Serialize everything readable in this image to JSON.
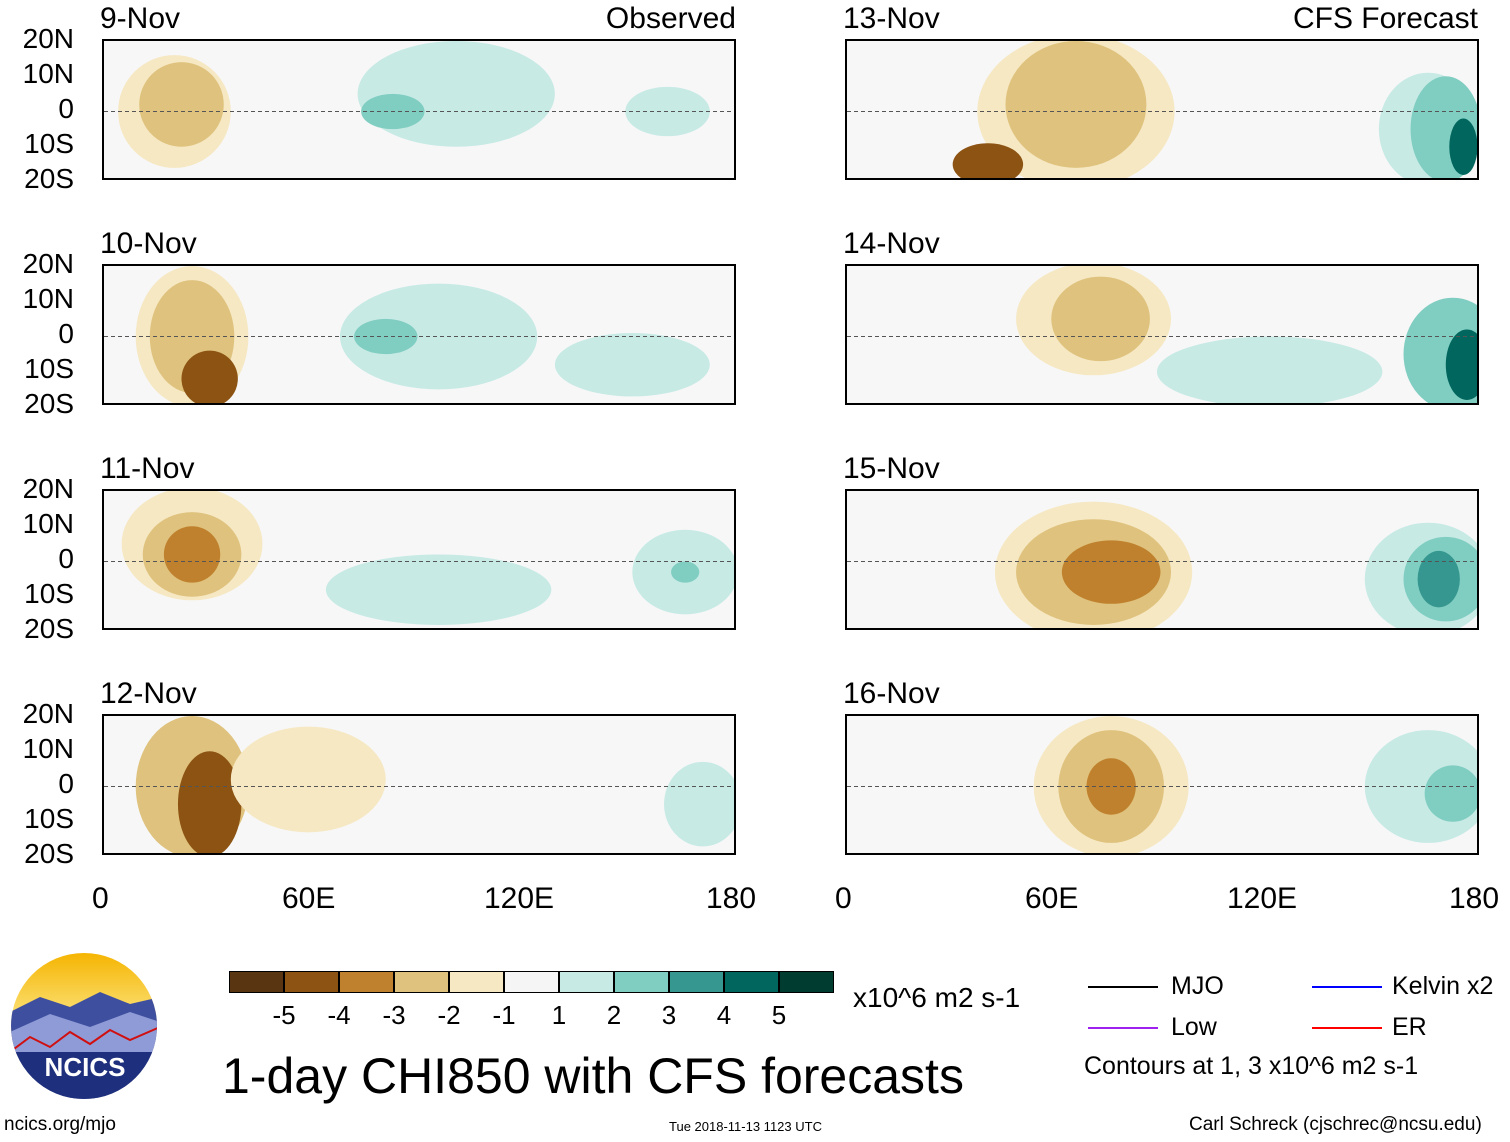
{
  "panels_left_title": "Observed",
  "panels_right_title": "CFS Forecast",
  "panels": [
    {
      "date": "9-Nov"
    },
    {
      "date": "10-Nov"
    },
    {
      "date": "11-Nov"
    },
    {
      "date": "12-Nov"
    },
    {
      "date": "13-Nov"
    },
    {
      "date": "14-Nov"
    },
    {
      "date": "15-Nov"
    },
    {
      "date": "16-Nov"
    }
  ],
  "lat_labels": [
    "20N",
    "10N",
    "0",
    "10S",
    "20S"
  ],
  "lon_labels": [
    "0",
    "60E",
    "120E",
    "180"
  ],
  "colorbar": {
    "colors": [
      "#5a3512",
      "#8c5313",
      "#bf812d",
      "#dfc27d",
      "#f6e8c3",
      "#f5f5f5",
      "#c7eae5",
      "#80cdc1",
      "#35978f",
      "#01665e",
      "#003c30"
    ],
    "labels": [
      "-5",
      "-4",
      "-3",
      "-2",
      "-1",
      "1",
      "2",
      "3",
      "4",
      "5"
    ],
    "units": "x10^6 m2 s-1"
  },
  "title": "1-day CHI850 with CFS forecasts",
  "legend": {
    "items": [
      {
        "label": "MJO",
        "color": "#000000"
      },
      {
        "label": "Kelvin x2",
        "color": "#0000ff"
      },
      {
        "label": "Low",
        "color": "#a020f0"
      },
      {
        "label": "ER",
        "color": "#ff0000"
      }
    ],
    "note": "Contours at 1, 3 x10^6 m2 s-1"
  },
  "logo_text": "NCICS",
  "footer": {
    "url": "ncics.org/mjo",
    "timestamp": "Tue 2018-11-13 1123 UTC",
    "author": "Carl Schreck (cjschrec@ncsu.edu)"
  }
}
